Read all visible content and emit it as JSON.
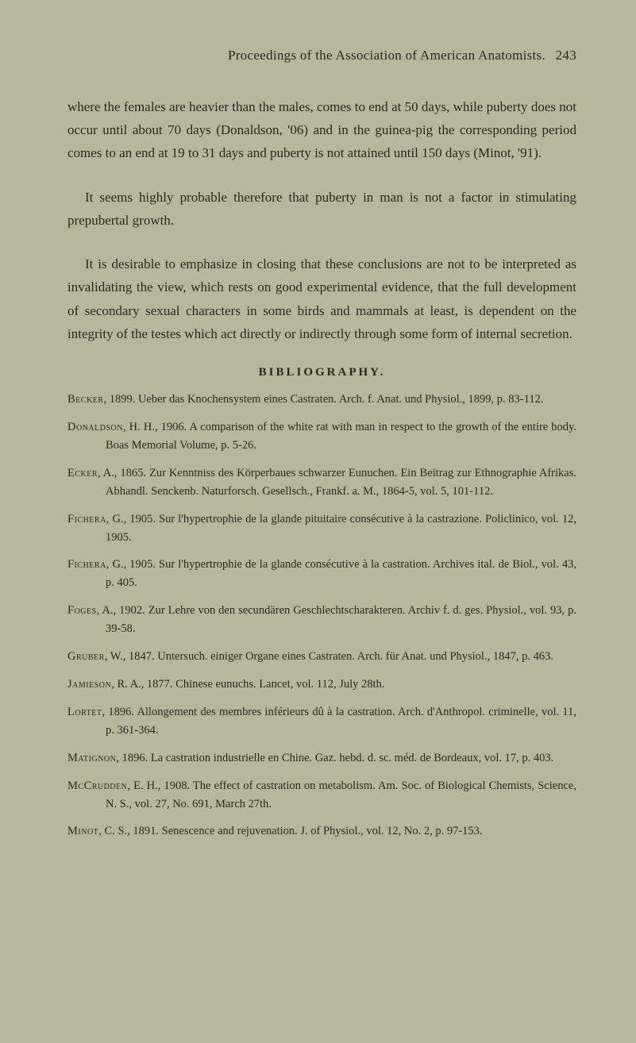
{
  "header": {
    "title": "Proceedings of the Association of American Anatomists.",
    "page": "243"
  },
  "paragraphs": {
    "p1": "where the females are heavier than the males, comes to end at 50 days, while puberty does not occur until about 70 days (Donaldson, '06) and in the guinea-pig the corresponding period comes to an end at 19 to 31 days and puberty is not attained until 150 days (Minot, '91).",
    "p2": "It seems highly probable therefore that puberty in man is not a factor in stimulating prepubertal growth.",
    "p3": "It is desirable to emphasize in closing that these conclusions are not to be interpreted as invalidating the view, which rests on good experimental evidence, that the full development of secondary sexual characters in some birds and mammals at least, is dependent on the integrity of the testes which act directly or indirectly through some form of internal secretion."
  },
  "bibHeading": "BIBLIOGRAPHY.",
  "bib": [
    {
      "author": "Becker",
      "rest": ", 1899.  Ueber das Knochensystem eines Castraten.  Arch. f. Anat. und Physiol., 1899, p. 83-112."
    },
    {
      "author": "Donaldson",
      "rest": ", H. H., 1906.  A comparison of the white rat with man in respect to the growth of the entire body.  Boas Memorial Volume, p. 5-26."
    },
    {
      "author": "Ecker",
      "rest": ", A., 1865.  Zur Kenntniss des Körperbaues schwarzer Eunuchen.  Ein Beitrag zur Ethnographie Afrikas.  Abhandl. Senckenb. Naturforsch. Gesellsch., Frankf. a. M., 1864-5, vol. 5, 101-112."
    },
    {
      "author": "Fichera",
      "rest": ", G., 1905.  Sur l'hypertrophie de la glande pituitaire consécutive à la castrazione.  Policlinico, vol. 12, 1905."
    },
    {
      "author": "Fichera",
      "rest": ", G., 1905.  Sur l'hypertrophie de la glande consécutive à la castration.  Archives ital. de Biol., vol. 43, p. 405."
    },
    {
      "author": "Foges",
      "rest": ", A., 1902.  Zur Lehre von den secundären Geschlechtscharakteren.  Archiv f. d. ges. Physiol., vol. 93, p. 39-58."
    },
    {
      "author": "Gruber",
      "rest": ", W., 1847.  Untersuch. einiger Organe eines Castraten.  Arch. für Anat. und Physiol., 1847, p. 463."
    },
    {
      "author": "Jamieson",
      "rest": ", R. A., 1877.  Chinese eunuchs.  Lancet, vol. 112, July 28th."
    },
    {
      "author": "Lortet",
      "rest": ", 1896.  Allongement des membres inférieurs dû à la castration.  Arch. d'Anthropol. criminelle, vol. 11, p. 361-364."
    },
    {
      "author": "Matignon",
      "rest": ", 1896.  La castration industrielle en Chine.  Gaz. hebd. d. sc. méd. de Bordeaux, vol. 17, p. 403."
    },
    {
      "author": "McCrudden",
      "rest": ", E. H., 1908.  The effect of castration on metabolism.  Am. Soc. of Biological Chemists, Science, N. S., vol. 27, No. 691, March 27th."
    },
    {
      "author": "Minot",
      "rest": ", C. S., 1891.  Senescence and rejuvenation.  J. of Physiol., vol. 12, No. 2, p. 97-153."
    }
  ]
}
